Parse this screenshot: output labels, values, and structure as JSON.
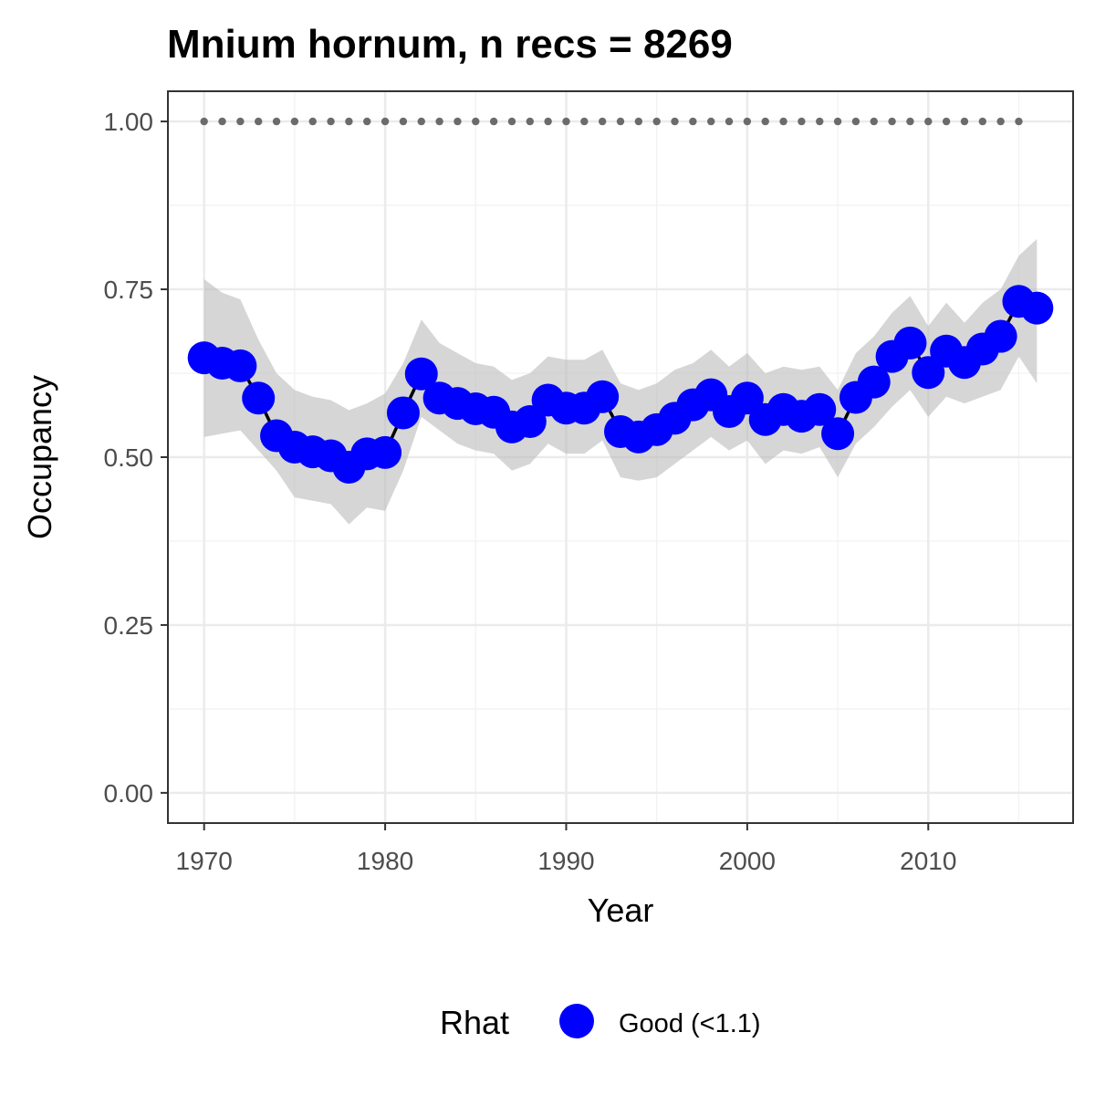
{
  "chart_data": {
    "type": "line",
    "title": "Mnium hornum, n recs = 8269",
    "xlabel": "Year",
    "ylabel": "Occupancy",
    "xlim": [
      1968,
      2018
    ],
    "ylim": [
      -0.045,
      1.045
    ],
    "x_ticks": [
      1970,
      1980,
      1990,
      2000,
      2010
    ],
    "x_tick_labels": [
      "1970",
      "1980",
      "1990",
      "2000",
      "2010"
    ],
    "y_ticks": [
      0,
      0.25,
      0.5,
      0.75,
      1.0
    ],
    "y_tick_labels": [
      "0.00",
      "0.25",
      "0.50",
      "0.75",
      "1.00"
    ],
    "grid": true,
    "x": [
      1970,
      1971,
      1972,
      1973,
      1974,
      1975,
      1976,
      1977,
      1978,
      1979,
      1980,
      1981,
      1982,
      1983,
      1984,
      1985,
      1986,
      1987,
      1988,
      1989,
      1990,
      1991,
      1992,
      1993,
      1994,
      1995,
      1996,
      1997,
      1998,
      1999,
      2000,
      2001,
      2002,
      2003,
      2004,
      2005,
      2006,
      2007,
      2008,
      2009,
      2010,
      2011,
      2012,
      2013,
      2014,
      2015,
      2016
    ],
    "series": [
      {
        "name": "Good (<1.1)",
        "values": [
          0.648,
          0.64,
          0.636,
          0.588,
          0.532,
          0.515,
          0.508,
          0.502,
          0.485,
          0.505,
          0.507,
          0.566,
          0.624,
          0.588,
          0.58,
          0.572,
          0.567,
          0.545,
          0.553,
          0.585,
          0.573,
          0.573,
          0.59,
          0.538,
          0.53,
          0.541,
          0.558,
          0.578,
          0.593,
          0.568,
          0.588,
          0.556,
          0.571,
          0.561,
          0.571,
          0.535,
          0.589,
          0.612,
          0.65,
          0.67,
          0.626,
          0.658,
          0.641,
          0.661,
          0.68,
          0.732,
          0.722
        ],
        "lower": [
          0.53,
          0.535,
          0.54,
          0.51,
          0.48,
          0.44,
          0.435,
          0.43,
          0.4,
          0.425,
          0.42,
          0.48,
          0.56,
          0.54,
          0.52,
          0.51,
          0.505,
          0.48,
          0.49,
          0.52,
          0.505,
          0.505,
          0.525,
          0.47,
          0.465,
          0.47,
          0.49,
          0.51,
          0.53,
          0.51,
          0.525,
          0.49,
          0.51,
          0.505,
          0.515,
          0.47,
          0.52,
          0.545,
          0.575,
          0.6,
          0.56,
          0.59,
          0.58,
          0.59,
          0.6,
          0.65,
          0.61
        ],
        "upper": [
          0.765,
          0.745,
          0.735,
          0.675,
          0.625,
          0.6,
          0.59,
          0.585,
          0.57,
          0.58,
          0.595,
          0.64,
          0.705,
          0.67,
          0.655,
          0.64,
          0.635,
          0.615,
          0.625,
          0.65,
          0.645,
          0.645,
          0.66,
          0.61,
          0.6,
          0.61,
          0.63,
          0.64,
          0.66,
          0.635,
          0.655,
          0.625,
          0.635,
          0.63,
          0.635,
          0.6,
          0.655,
          0.68,
          0.715,
          0.74,
          0.695,
          0.73,
          0.7,
          0.73,
          0.75,
          0.8,
          0.825
        ],
        "color": "#0000ff"
      }
    ],
    "reference_line": {
      "y": 1.0,
      "x_from": 1970,
      "x_to": 2015,
      "style": "dotted",
      "color": "#6b6b6b"
    },
    "ribbon_color": "#bdbdbd",
    "line_color": "#000000",
    "legend": {
      "title": "Rhat",
      "placement": "bottom",
      "entries": [
        {
          "label": "Good (<1.1)",
          "color": "#0000ff"
        }
      ]
    }
  }
}
